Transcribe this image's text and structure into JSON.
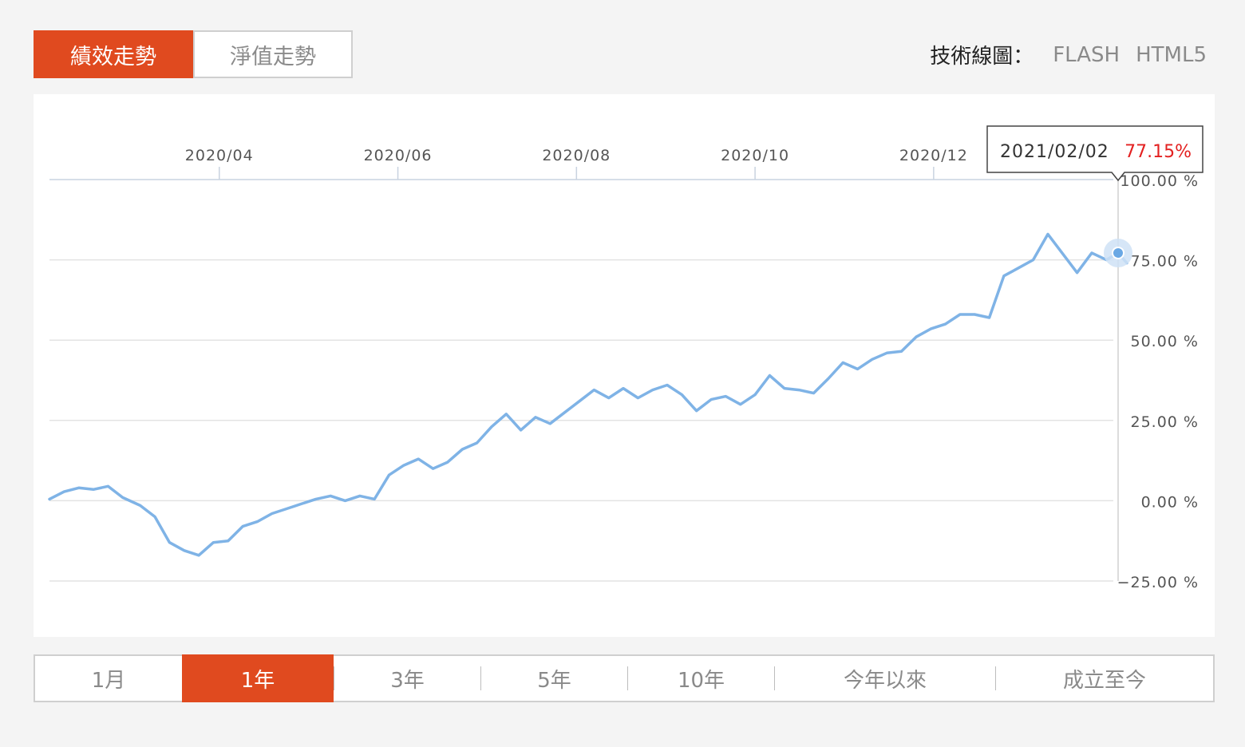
{
  "tabs": [
    {
      "label": "績效走勢",
      "active": true
    },
    {
      "label": "淨值走勢",
      "active": false
    }
  ],
  "tech": {
    "label": "技術線圖：",
    "options": [
      "FLASH",
      "HTML5"
    ]
  },
  "colors": {
    "accent": "#e04a1f",
    "line": "#7fb3e6",
    "tooltip_value": "#e32020"
  },
  "ranges": [
    {
      "label": "1月",
      "active": false
    },
    {
      "label": "1年",
      "active": true
    },
    {
      "label": "3年",
      "active": false
    },
    {
      "label": "5年",
      "active": false
    },
    {
      "label": "10年",
      "active": false
    },
    {
      "label": "今年以來",
      "active": false
    },
    {
      "label": "成立至今",
      "active": false
    }
  ],
  "tooltip": {
    "date": "2021/02/02",
    "value": "77.15%"
  },
  "chart_data": {
    "type": "line",
    "x_tick_labels": [
      "2020/04",
      "2020/06",
      "2020/08",
      "2020/10",
      "2020/12"
    ],
    "y_tick_labels": [
      "100.00 %",
      "75.00 %",
      "50.00 %",
      "25.00 %",
      "0.00 %",
      "−25.00 %"
    ],
    "y_ticks": [
      100,
      75,
      50,
      25,
      0,
      -25
    ],
    "ylim": [
      -25,
      100
    ],
    "grid": true,
    "x": [
      "2020/02/03",
      "2020/02/08",
      "2020/02/13",
      "2020/02/18",
      "2020/02/23",
      "2020/02/28",
      "2020/03/05",
      "2020/03/10",
      "2020/03/15",
      "2020/03/20",
      "2020/03/25",
      "2020/03/30",
      "2020/04/04",
      "2020/04/09",
      "2020/04/14",
      "2020/04/19",
      "2020/04/24",
      "2020/04/29",
      "2020/05/04",
      "2020/05/09",
      "2020/05/14",
      "2020/05/19",
      "2020/05/24",
      "2020/05/29",
      "2020/06/03",
      "2020/06/08",
      "2020/06/13",
      "2020/06/18",
      "2020/06/23",
      "2020/06/28",
      "2020/07/03",
      "2020/07/08",
      "2020/07/13",
      "2020/07/18",
      "2020/07/23",
      "2020/07/28",
      "2020/08/02",
      "2020/08/07",
      "2020/08/12",
      "2020/08/17",
      "2020/08/22",
      "2020/08/27",
      "2020/09/01",
      "2020/09/06",
      "2020/09/11",
      "2020/09/16",
      "2020/09/21",
      "2020/09/26",
      "2020/10/01",
      "2020/10/06",
      "2020/10/11",
      "2020/10/16",
      "2020/10/21",
      "2020/10/26",
      "2020/10/31",
      "2020/11/05",
      "2020/11/10",
      "2020/11/15",
      "2020/11/20",
      "2020/11/25",
      "2020/11/30",
      "2020/12/05",
      "2020/12/10",
      "2020/12/15",
      "2020/12/20",
      "2020/12/25",
      "2020/12/30",
      "2021/01/04",
      "2021/01/09",
      "2021/01/14",
      "2021/01/19",
      "2021/01/24",
      "2021/01/29",
      "2021/02/02",
      "2021/02/05"
    ],
    "values": [
      0.5,
      2.8,
      4.0,
      3.5,
      4.5,
      1.0,
      -1.5,
      -5.0,
      -13.0,
      -15.5,
      -17.0,
      -13.0,
      -12.5,
      -8.0,
      -6.5,
      -4.0,
      -2.5,
      -1.0,
      0.5,
      1.5,
      0.0,
      1.5,
      0.5,
      8.0,
      11.0,
      13.0,
      10.0,
      12.0,
      16.0,
      18.0,
      23.0,
      27.0,
      22.0,
      26.0,
      24.0,
      27.5,
      31.0,
      34.5,
      32.0,
      35.0,
      32.0,
      34.5,
      36.0,
      33.0,
      28.0,
      31.5,
      32.5,
      30.0,
      33.0,
      39.0,
      35.0,
      34.5,
      33.5,
      38.0,
      43.0,
      41.0,
      44.0,
      46.0,
      46.5,
      51.0,
      53.5,
      55.0,
      58.0,
      58.0,
      57.0,
      70.0,
      72.5,
      75.0,
      83.0,
      77.0,
      71.0,
      77.15,
      75.0,
      77.15,
      74.0
    ]
  }
}
